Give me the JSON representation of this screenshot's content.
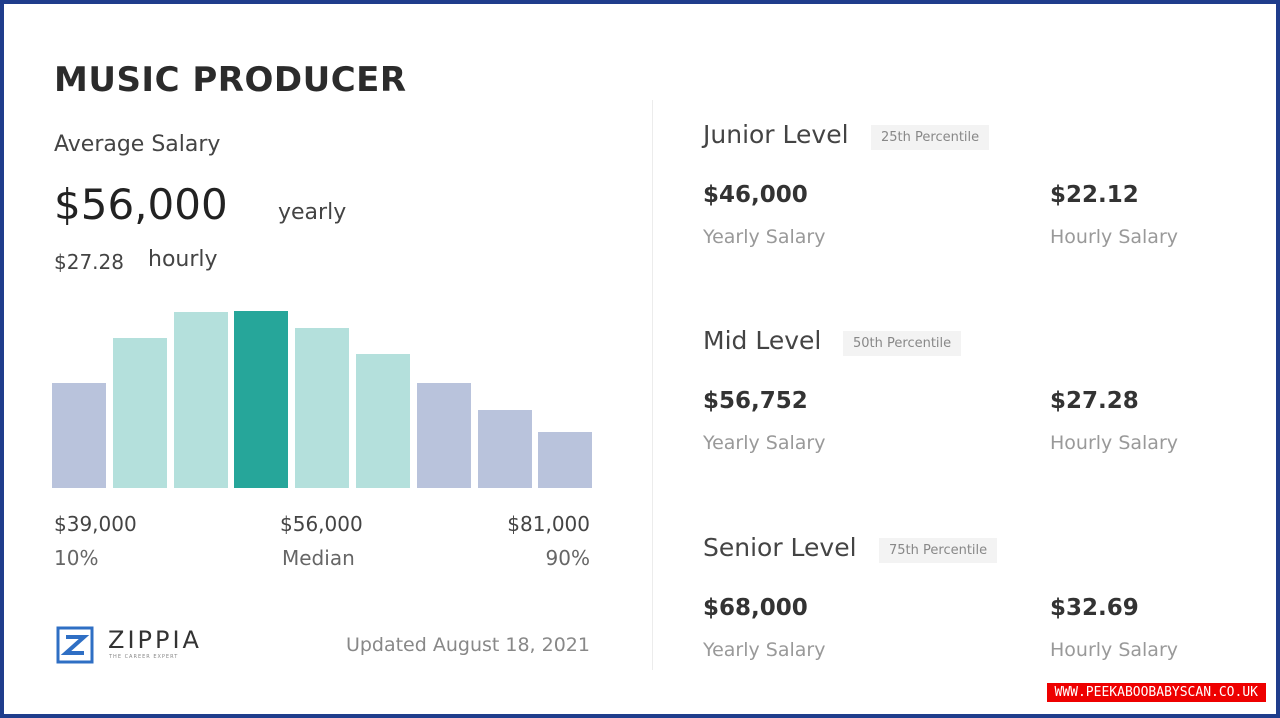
{
  "title": "MUSIC PRODUCER",
  "average": {
    "label": "Average Salary",
    "yearly": "$56,000",
    "yearly_unit": "yearly",
    "hourly": "$27.28",
    "hourly_unit": "hourly"
  },
  "histogram": {
    "values": [
      105,
      150,
      176,
      177,
      160,
      134,
      105,
      78,
      56
    ],
    "colors": [
      "#b9c3dc",
      "#b4e0dc",
      "#b4e0dc",
      "#26a69a",
      "#b4e0dc",
      "#b4e0dc",
      "#b9c3dc",
      "#b9c3dc",
      "#b9c3dc"
    ],
    "ylim": [
      0,
      180
    ]
  },
  "scale": [
    {
      "amount": "$39,000",
      "label": "10%"
    },
    {
      "amount": "$56,000",
      "label": "Median"
    },
    {
      "amount": "$81,000",
      "label": "90%"
    }
  ],
  "brand": {
    "name": "ZIPPIA",
    "tagline": "THE CAREER EXPERT"
  },
  "updated": "Updated August 18, 2021",
  "levels": [
    {
      "name": "Junior Level",
      "percentile": "25th Percentile",
      "yearly": "$46,000",
      "yearly_label": "Yearly Salary",
      "hourly": "$22.12",
      "hourly_label": "Hourly Salary"
    },
    {
      "name": "Mid Level",
      "percentile": "50th Percentile",
      "yearly": "$56,752",
      "yearly_label": "Yearly Salary",
      "hourly": "$27.28",
      "hourly_label": "Hourly Salary"
    },
    {
      "name": "Senior Level",
      "percentile": "75th Percentile",
      "yearly": "$68,000",
      "yearly_label": "Yearly Salary",
      "hourly": "$32.69",
      "hourly_label": "Hourly Salary"
    }
  ],
  "watermark": "WWW.PEEKABOOBABYSCAN.CO.UK"
}
